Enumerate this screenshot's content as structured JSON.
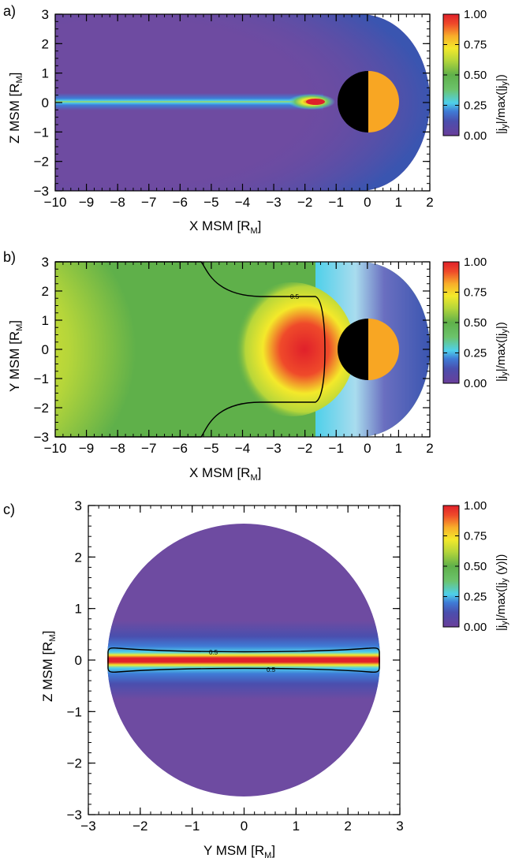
{
  "colors": {
    "colormap": [
      "#6a3e9a",
      "#4a4fae",
      "#3f7bd6",
      "#4fd0ea",
      "#6cc36c",
      "#5fb04a",
      "#b6d63a",
      "#f4e92a",
      "#f8ad2a",
      "#ef4a2a",
      "#e0202a"
    ],
    "background_field": "#6e4ba1",
    "planet_day": "#f8a623",
    "planet_night": "#000000",
    "contour": "#000000"
  },
  "panels": [
    {
      "label": "a)",
      "xlabel": "X MSM [R",
      "xlabel_sub": "M",
      "ylabel": "Z MSM [R",
      "ylabel_sub": "M",
      "colorbar_title": "|j",
      "colorbar_title_mid": "y",
      "colorbar_title_rest": "|/max(|j",
      "colorbar_title_mid2": "y",
      "colorbar_title_end": "|)",
      "colorbar_ticks": [
        "1.00",
        "0.75",
        "0.50",
        "0.25",
        "0.00"
      ],
      "xticks": [
        "-10",
        "-9",
        "-8",
        "-7",
        "-6",
        "-5",
        "-4",
        "-3",
        "-2",
        "-1",
        "0",
        "1",
        "2"
      ],
      "yticks": [
        "3",
        "2",
        "1",
        "0",
        "-1",
        "-2",
        "-3"
      ]
    },
    {
      "label": "b)",
      "xlabel": "X MSM [R",
      "xlabel_sub": "M",
      "ylabel": "Y MSM [R",
      "ylabel_sub": "M",
      "colorbar_title": "|j",
      "colorbar_title_mid": "y",
      "colorbar_title_rest": "|/max(|j",
      "colorbar_title_mid2": "y",
      "colorbar_title_end": "|)",
      "colorbar_ticks": [
        "1.00",
        "0.75",
        "0.50",
        "0.25",
        "0.00"
      ],
      "contour_label": "0.5",
      "xticks": [
        "-10",
        "-9",
        "-8",
        "-7",
        "-6",
        "-5",
        "-4",
        "-3",
        "-2",
        "-1",
        "0",
        "1",
        "2"
      ],
      "yticks": [
        "3",
        "2",
        "1",
        "0",
        "-1",
        "-2",
        "-3"
      ]
    },
    {
      "label": "c)",
      "xlabel": "Y MSM [R",
      "xlabel_sub": "M",
      "ylabel": "Z MSM [R",
      "ylabel_sub": "M",
      "colorbar_title": "|j",
      "colorbar_title_mid": "y",
      "colorbar_title_rest": "|/max(|j",
      "colorbar_title_mid2": "y",
      "colorbar_title_end": " (y)|)",
      "colorbar_ticks": [
        "1.00",
        "0.75",
        "0.50",
        "0.25",
        "0.00"
      ],
      "contour_label_top": "0.5",
      "contour_label_bottom": "0.5",
      "xticks": [
        "-3",
        "-2",
        "-1",
        "0",
        "1",
        "2",
        "3"
      ],
      "yticks": [
        "3",
        "2",
        "1",
        "0",
        "-1",
        "-2",
        "-3"
      ]
    }
  ],
  "chart_data": [
    {
      "type": "heatmap",
      "title": "",
      "xlabel": "X MSM [RM]",
      "ylabel": "Z MSM [RM]",
      "xlim": [
        -10,
        2
      ],
      "ylim": [
        -3,
        3
      ],
      "colorbar": {
        "label": "|jy|/max(|jy|)",
        "range": [
          0,
          1
        ],
        "ticks": [
          0.0,
          0.25,
          0.5,
          0.75,
          1.0
        ]
      },
      "features": {
        "current_sheet_z": 0,
        "peak_x": -1.9,
        "planet_center": [
          0,
          0
        ]
      }
    },
    {
      "type": "heatmap",
      "title": "",
      "xlabel": "X MSM [RM]",
      "ylabel": "Y MSM [RM]",
      "xlim": [
        -10,
        2
      ],
      "ylim": [
        -3,
        3
      ],
      "colorbar": {
        "label": "|jy|/max(|jy|)",
        "range": [
          0,
          1
        ],
        "ticks": [
          0.0,
          0.25,
          0.5,
          0.75,
          1.0
        ]
      },
      "contours": [
        0.5
      ],
      "features": {
        "peak_x": -2.1,
        "peak_y": 0,
        "planet_center": [
          0,
          0
        ]
      }
    },
    {
      "type": "heatmap",
      "title": "",
      "xlabel": "Y MSM [RM]",
      "ylabel": "Z MSM [RM]",
      "xlim": [
        -3,
        3
      ],
      "ylim": [
        -3,
        3
      ],
      "colorbar": {
        "label": "|jy|/max(|jy (y)|)",
        "range": [
          0,
          1
        ],
        "ticks": [
          0.0,
          0.25,
          0.5,
          0.75,
          1.0
        ]
      },
      "contours": [
        0.5
      ],
      "features": {
        "current_sheet_z": 0,
        "disk_radius": 2.6
      }
    }
  ]
}
